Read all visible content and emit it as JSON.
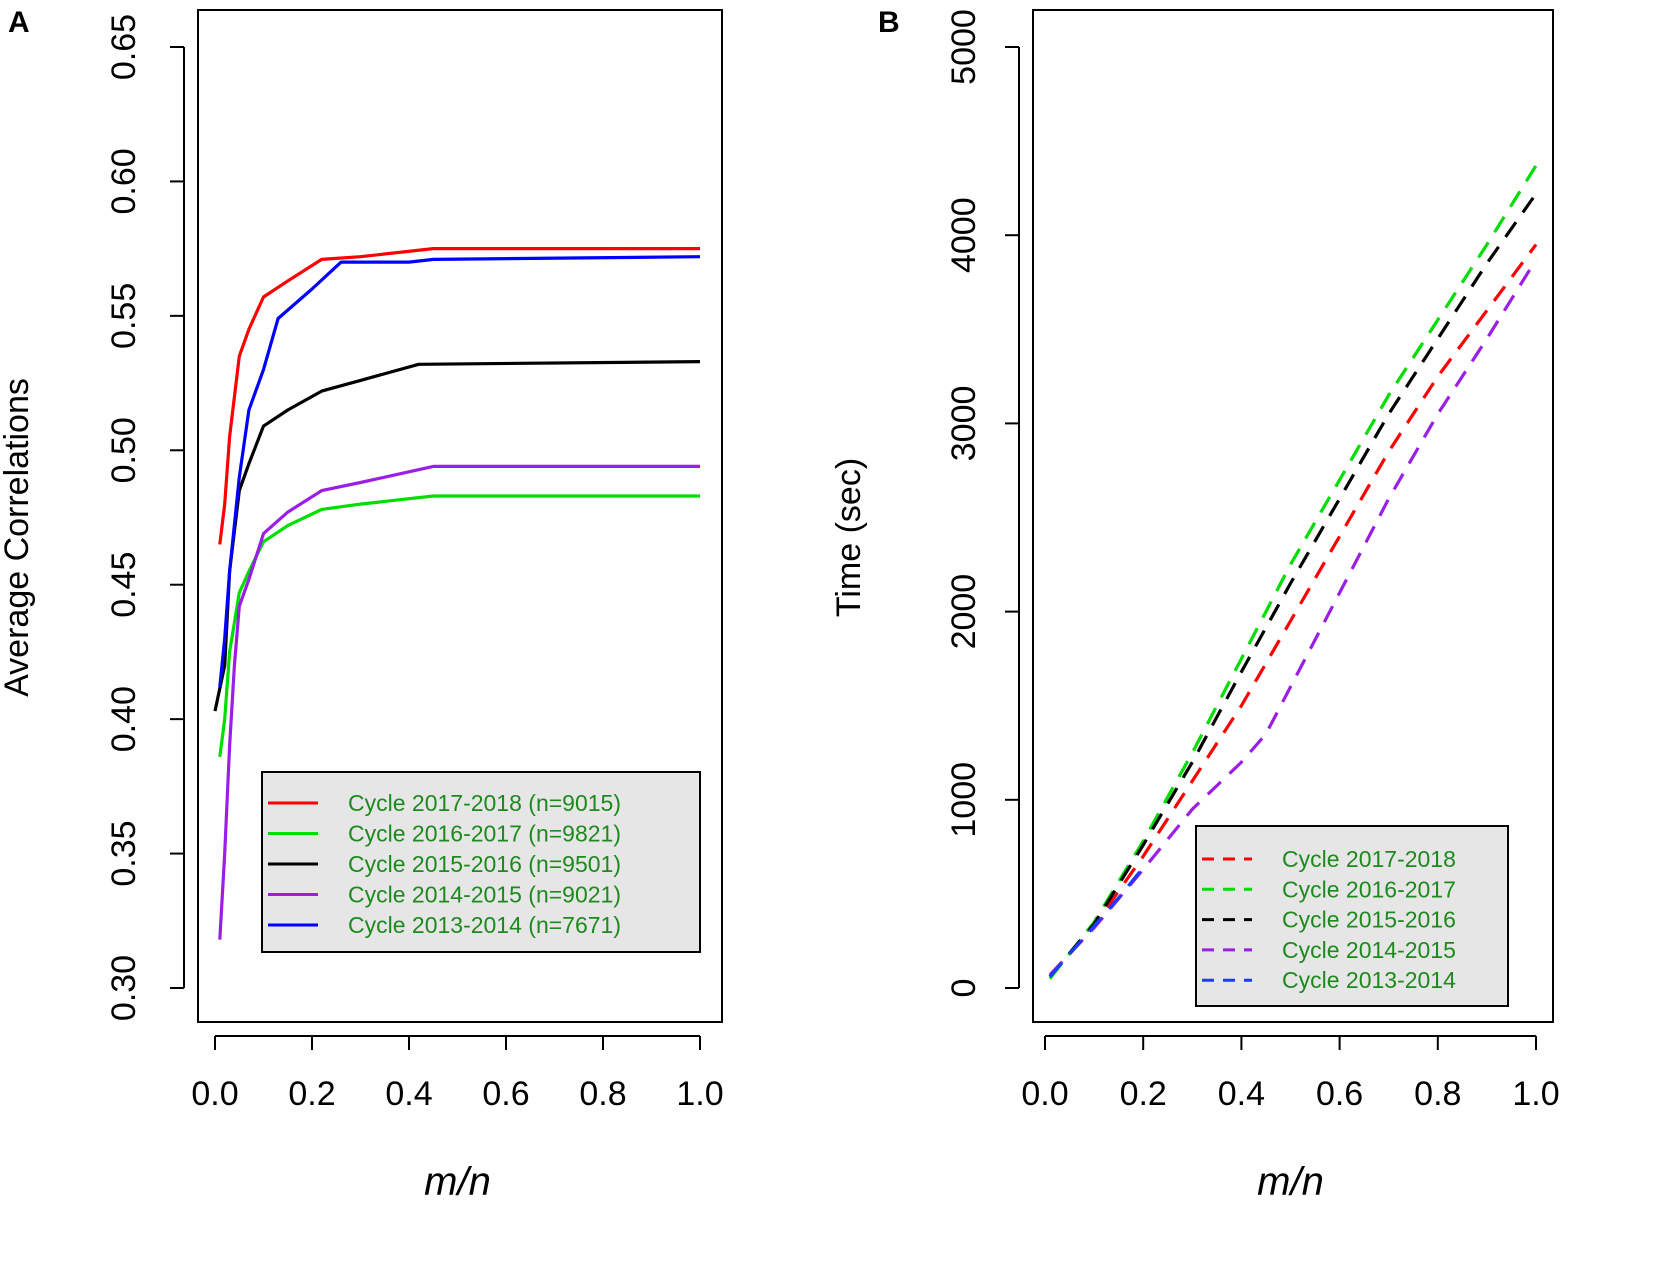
{
  "chart_data": [
    {
      "panel_label": "A",
      "type": "line",
      "title": "",
      "xlabel": "m/n",
      "ylabel": "Average Correlations",
      "xlim": [
        0.0,
        1.0
      ],
      "ylim": [
        0.3,
        0.65
      ],
      "xticks": [
        "0.0",
        "0.2",
        "0.4",
        "0.6",
        "0.8",
        "1.0"
      ],
      "yticks": [
        "0.30",
        "0.35",
        "0.40",
        "0.45",
        "0.50",
        "0.55",
        "0.60",
        "0.65"
      ],
      "legend_position": "bottom-right",
      "line_style": "solid",
      "series": [
        {
          "name": "Cycle 2017-2018 (n=9015)",
          "color": "#ff0000",
          "x": [
            0.01,
            0.02,
            0.03,
            0.05,
            0.07,
            0.1,
            0.15,
            0.22,
            0.3,
            0.45,
            1.0
          ],
          "y": [
            0.465,
            0.48,
            0.505,
            0.535,
            0.545,
            0.557,
            0.563,
            0.571,
            0.572,
            0.575,
            0.575
          ]
        },
        {
          "name": "Cycle 2016-2017 (n=9821)",
          "color": "#00dd00",
          "x": [
            0.01,
            0.02,
            0.03,
            0.05,
            0.07,
            0.1,
            0.15,
            0.22,
            0.3,
            0.45,
            1.0
          ],
          "y": [
            0.386,
            0.4,
            0.425,
            0.447,
            0.455,
            0.466,
            0.472,
            0.478,
            0.48,
            0.483,
            0.483
          ]
        },
        {
          "name": "Cycle 2015-2016 (n=9501)",
          "color": "#000000",
          "x": [
            0.0,
            0.02,
            0.03,
            0.05,
            0.07,
            0.1,
            0.15,
            0.22,
            0.3,
            0.42,
            1.0
          ],
          "y": [
            0.403,
            0.42,
            0.455,
            0.485,
            0.495,
            0.509,
            0.515,
            0.522,
            0.526,
            0.532,
            0.533
          ]
        },
        {
          "name": "Cycle 2014-2015 (n=9021)",
          "color": "#9a1ee6",
          "x": [
            0.01,
            0.02,
            0.03,
            0.04,
            0.05,
            0.07,
            0.1,
            0.15,
            0.22,
            0.3,
            0.45,
            1.0
          ],
          "y": [
            0.318,
            0.35,
            0.39,
            0.42,
            0.442,
            0.452,
            0.469,
            0.477,
            0.485,
            0.488,
            0.494,
            0.494
          ]
        },
        {
          "name": "Cycle 2013-2014 (n=7671)",
          "color": "#0000ff",
          "x": [
            0.01,
            0.02,
            0.03,
            0.05,
            0.07,
            0.1,
            0.13,
            0.2,
            0.26,
            0.4,
            0.45,
            1.0
          ],
          "y": [
            0.412,
            0.43,
            0.455,
            0.49,
            0.515,
            0.53,
            0.549,
            0.56,
            0.57,
            0.57,
            0.571,
            0.572
          ]
        }
      ]
    },
    {
      "panel_label": "B",
      "type": "line",
      "title": "",
      "xlabel": "m/n",
      "ylabel": "Time (sec)",
      "xlim": [
        0.0,
        1.0
      ],
      "ylim": [
        0,
        5000
      ],
      "xticks": [
        "0.0",
        "0.2",
        "0.4",
        "0.6",
        "0.8",
        "1.0"
      ],
      "yticks": [
        "0",
        "1000",
        "2000",
        "3000",
        "4000",
        "5000"
      ],
      "legend_position": "bottom-right",
      "line_style": "dashed",
      "series": [
        {
          "name": "Cycle 2017-2018",
          "color": "#ff0000",
          "x": [
            0.01,
            0.1,
            0.2,
            0.3,
            0.4,
            0.5,
            0.6,
            0.7,
            0.8,
            0.9,
            1.0
          ],
          "y": [
            60,
            330,
            700,
            1100,
            1500,
            1950,
            2400,
            2850,
            3250,
            3600,
            3950
          ]
        },
        {
          "name": "Cycle 2016-2017",
          "color": "#00dd00",
          "x": [
            0.01,
            0.1,
            0.2,
            0.3,
            0.4,
            0.5,
            0.6,
            0.7,
            0.8,
            0.9,
            1.0
          ],
          "y": [
            50,
            350,
            780,
            1250,
            1750,
            2250,
            2700,
            3150,
            3550,
            3950,
            4370
          ]
        },
        {
          "name": "Cycle 2015-2016",
          "color": "#000000",
          "x": [
            0.01,
            0.1,
            0.2,
            0.3,
            0.4,
            0.5,
            0.6,
            0.7,
            0.8,
            0.9,
            1.0
          ],
          "y": [
            60,
            340,
            760,
            1200,
            1680,
            2150,
            2600,
            3050,
            3450,
            3850,
            4220
          ]
        },
        {
          "name": "Cycle 2014-2015",
          "color": "#9a1ee6",
          "x": [
            0.01,
            0.1,
            0.2,
            0.3,
            0.4,
            0.45,
            0.5,
            0.6,
            0.7,
            0.8,
            0.9,
            1.0
          ],
          "y": [
            70,
            320,
            630,
            950,
            1200,
            1350,
            1600,
            2100,
            2600,
            3050,
            3450,
            3870
          ]
        },
        {
          "name": "Cycle 2013-2014",
          "color": "#1a3cff",
          "x": [
            0.01,
            0.05,
            0.1,
            0.15,
            0.2
          ],
          "y": [
            60,
            180,
            330,
            480,
            640
          ]
        }
      ]
    }
  ]
}
